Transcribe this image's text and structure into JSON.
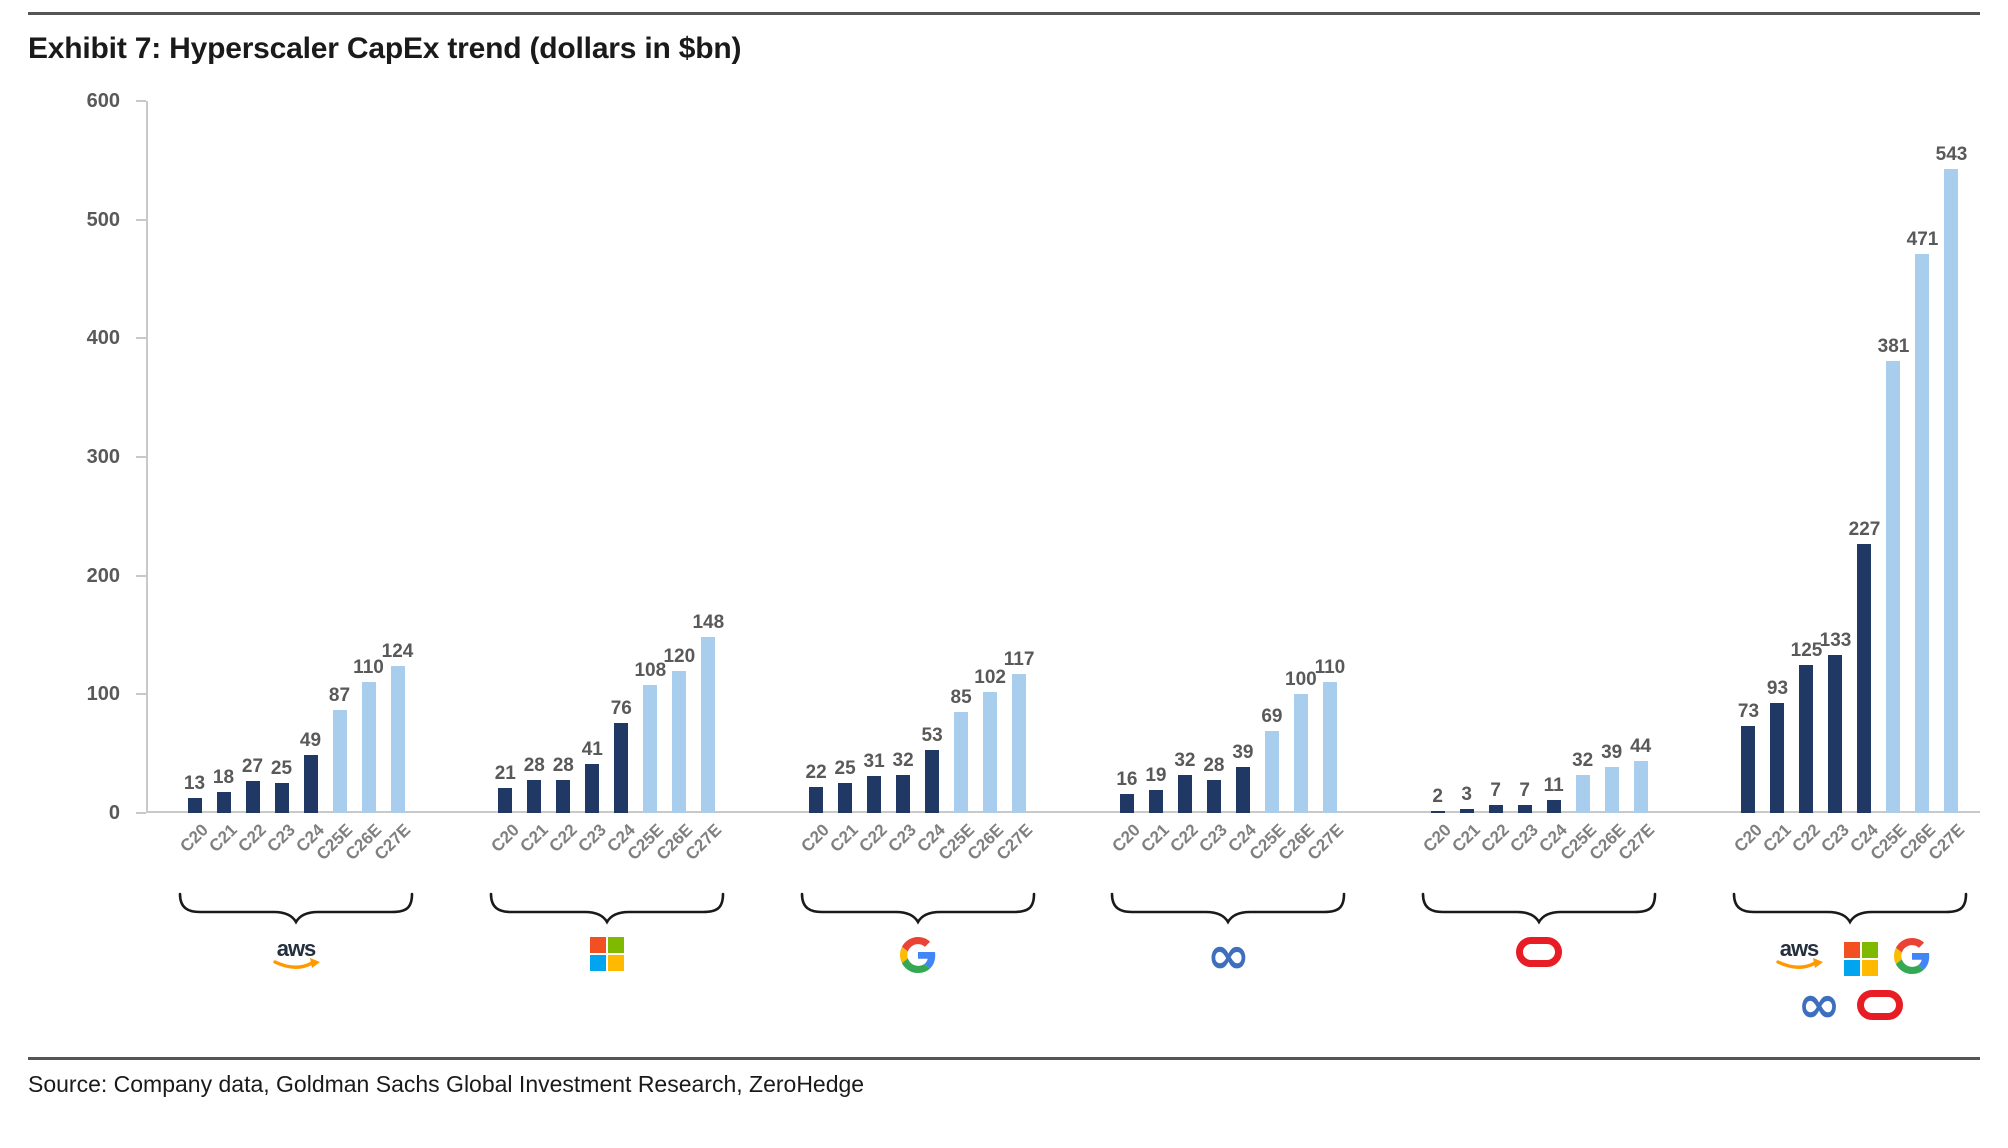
{
  "header": {
    "title": "Exhibit 7: Hyperscaler CapEx trend (dollars in $bn)"
  },
  "footer": {
    "source": "Source: Company data, Goldman Sachs Global Investment Research, ZeroHedge"
  },
  "chart_data": {
    "type": "bar",
    "title": "Exhibit 7: Hyperscaler CapEx trend (dollars in $bn)",
    "xlabel": "",
    "ylabel": "",
    "ylim": [
      0,
      600
    ],
    "yticks": [
      0,
      100,
      200,
      300,
      400,
      500,
      600
    ],
    "grid": false,
    "legend_position": "none",
    "categories": [
      "C20",
      "C21",
      "C22",
      "C23",
      "C24",
      "C25E",
      "C26E",
      "C27E"
    ],
    "actual_categories": [
      "C20",
      "C21",
      "C22",
      "C23",
      "C24"
    ],
    "estimate_categories": [
      "C25E",
      "C26E",
      "C27E"
    ],
    "groups": [
      {
        "name": "aws",
        "label_icons": [
          "aws"
        ],
        "values": [
          13,
          18,
          27,
          25,
          49,
          87,
          110,
          124
        ]
      },
      {
        "name": "microsoft",
        "label_icons": [
          "microsoft"
        ],
        "values": [
          21,
          28,
          28,
          41,
          76,
          108,
          120,
          148
        ]
      },
      {
        "name": "google",
        "label_icons": [
          "google"
        ],
        "values": [
          22,
          25,
          31,
          32,
          53,
          85,
          102,
          117
        ]
      },
      {
        "name": "meta",
        "label_icons": [
          "meta"
        ],
        "values": [
          16,
          19,
          32,
          28,
          39,
          69,
          100,
          110
        ]
      },
      {
        "name": "oracle",
        "label_icons": [
          "oracle"
        ],
        "values": [
          2,
          3,
          7,
          7,
          11,
          32,
          39,
          44
        ]
      },
      {
        "name": "total",
        "label_icons": [
          "aws",
          "microsoft",
          "google",
          "meta",
          "oracle"
        ],
        "values": [
          73,
          93,
          125,
          133,
          227,
          381,
          471,
          543
        ]
      }
    ],
    "colors": {
      "actual": "#203864",
      "estimate": "#A9CDEC",
      "axis": "#C9C9C9",
      "value_label": "#595959",
      "tick_label": "#7F7F7F",
      "brace": "#1A1A1A",
      "microsoft_squares": [
        "#F25022",
        "#7FBA00",
        "#00A4EF",
        "#FFB900"
      ],
      "google_g": [
        "#EA4335",
        "#4285F4",
        "#FBBC05",
        "#34A853"
      ],
      "aws_text": "#252F3E",
      "aws_smile": "#FF9900",
      "meta": "#3E6FBF",
      "oracle": "#E81C24"
    },
    "logo_text": {
      "aws": "aws",
      "meta_glyph": "∞"
    }
  }
}
